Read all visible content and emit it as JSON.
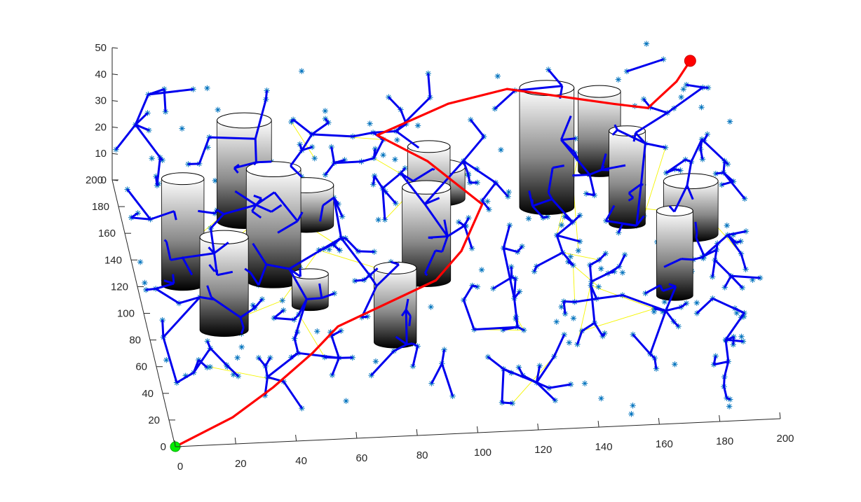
{
  "chart_data": {
    "type": "scatter",
    "title": "",
    "xlabel": "",
    "ylabel": "",
    "zlabel": "",
    "xlim": [
      0,
      200
    ],
    "ylim": [
      0,
      200
    ],
    "zlim": [
      0,
      50
    ],
    "x_ticks": [
      "0",
      "20",
      "40",
      "60",
      "80",
      "100",
      "120",
      "140",
      "160",
      "180",
      "200"
    ],
    "y_ticks": [
      "0",
      "20",
      "40",
      "60",
      "80",
      "100",
      "120",
      "140",
      "160",
      "180",
      "200"
    ],
    "z_ticks": [
      "0",
      "10",
      "20",
      "30",
      "40",
      "50"
    ],
    "grid": false,
    "start": {
      "x": 0,
      "y": 0,
      "z": 0,
      "color": "#00ee00"
    },
    "goal": {
      "x": 190,
      "y": 190,
      "z": 40,
      "color": "#ff0000"
    },
    "obstacles": [
      {
        "x": 15,
        "y": 120,
        "r": 7,
        "h": 40
      },
      {
        "x": 40,
        "y": 165,
        "r": 9,
        "h": 38
      },
      {
        "x": 25,
        "y": 85,
        "r": 8,
        "h": 35
      },
      {
        "x": 45,
        "y": 120,
        "r": 9,
        "h": 42
      },
      {
        "x": 60,
        "y": 160,
        "r": 9,
        "h": 15
      },
      {
        "x": 55,
        "y": 100,
        "r": 6,
        "h": 12
      },
      {
        "x": 105,
        "y": 175,
        "r": 9,
        "h": 12
      },
      {
        "x": 100,
        "y": 155,
        "r": 7,
        "h": 30
      },
      {
        "x": 95,
        "y": 115,
        "r": 8,
        "h": 35
      },
      {
        "x": 80,
        "y": 70,
        "r": 7,
        "h": 28
      },
      {
        "x": 140,
        "y": 165,
        "r": 9,
        "h": 45
      },
      {
        "x": 160,
        "y": 190,
        "r": 7,
        "h": 30
      },
      {
        "x": 165,
        "y": 150,
        "r": 6,
        "h": 35
      },
      {
        "x": 185,
        "y": 140,
        "r": 9,
        "h": 20
      },
      {
        "x": 175,
        "y": 95,
        "r": 6,
        "h": 32
      }
    ],
    "path": [
      {
        "x": 0,
        "y": 0,
        "z": 0
      },
      {
        "x": 20,
        "y": 10,
        "z": 5
      },
      {
        "x": 35,
        "y": 25,
        "z": 8
      },
      {
        "x": 50,
        "y": 45,
        "z": 10
      },
      {
        "x": 60,
        "y": 60,
        "z": 12
      },
      {
        "x": 95,
        "y": 85,
        "z": 15
      },
      {
        "x": 105,
        "y": 100,
        "z": 18
      },
      {
        "x": 115,
        "y": 130,
        "z": 20
      },
      {
        "x": 100,
        "y": 160,
        "z": 22
      },
      {
        "x": 85,
        "y": 175,
        "z": 25
      },
      {
        "x": 110,
        "y": 190,
        "z": 28
      },
      {
        "x": 130,
        "y": 195,
        "z": 30
      },
      {
        "x": 165,
        "y": 190,
        "z": 25
      },
      {
        "x": 175,
        "y": 180,
        "z": 28
      },
      {
        "x": 185,
        "y": 185,
        "z": 35
      },
      {
        "x": 190,
        "y": 190,
        "z": 40
      }
    ],
    "tree_edge_color": "#0000ee",
    "link_color": "#f5f500",
    "sample_color": "#0072bd",
    "path_color": "#ff0000",
    "obstacle_colors": [
      "#ffffff",
      "#000000"
    ]
  }
}
